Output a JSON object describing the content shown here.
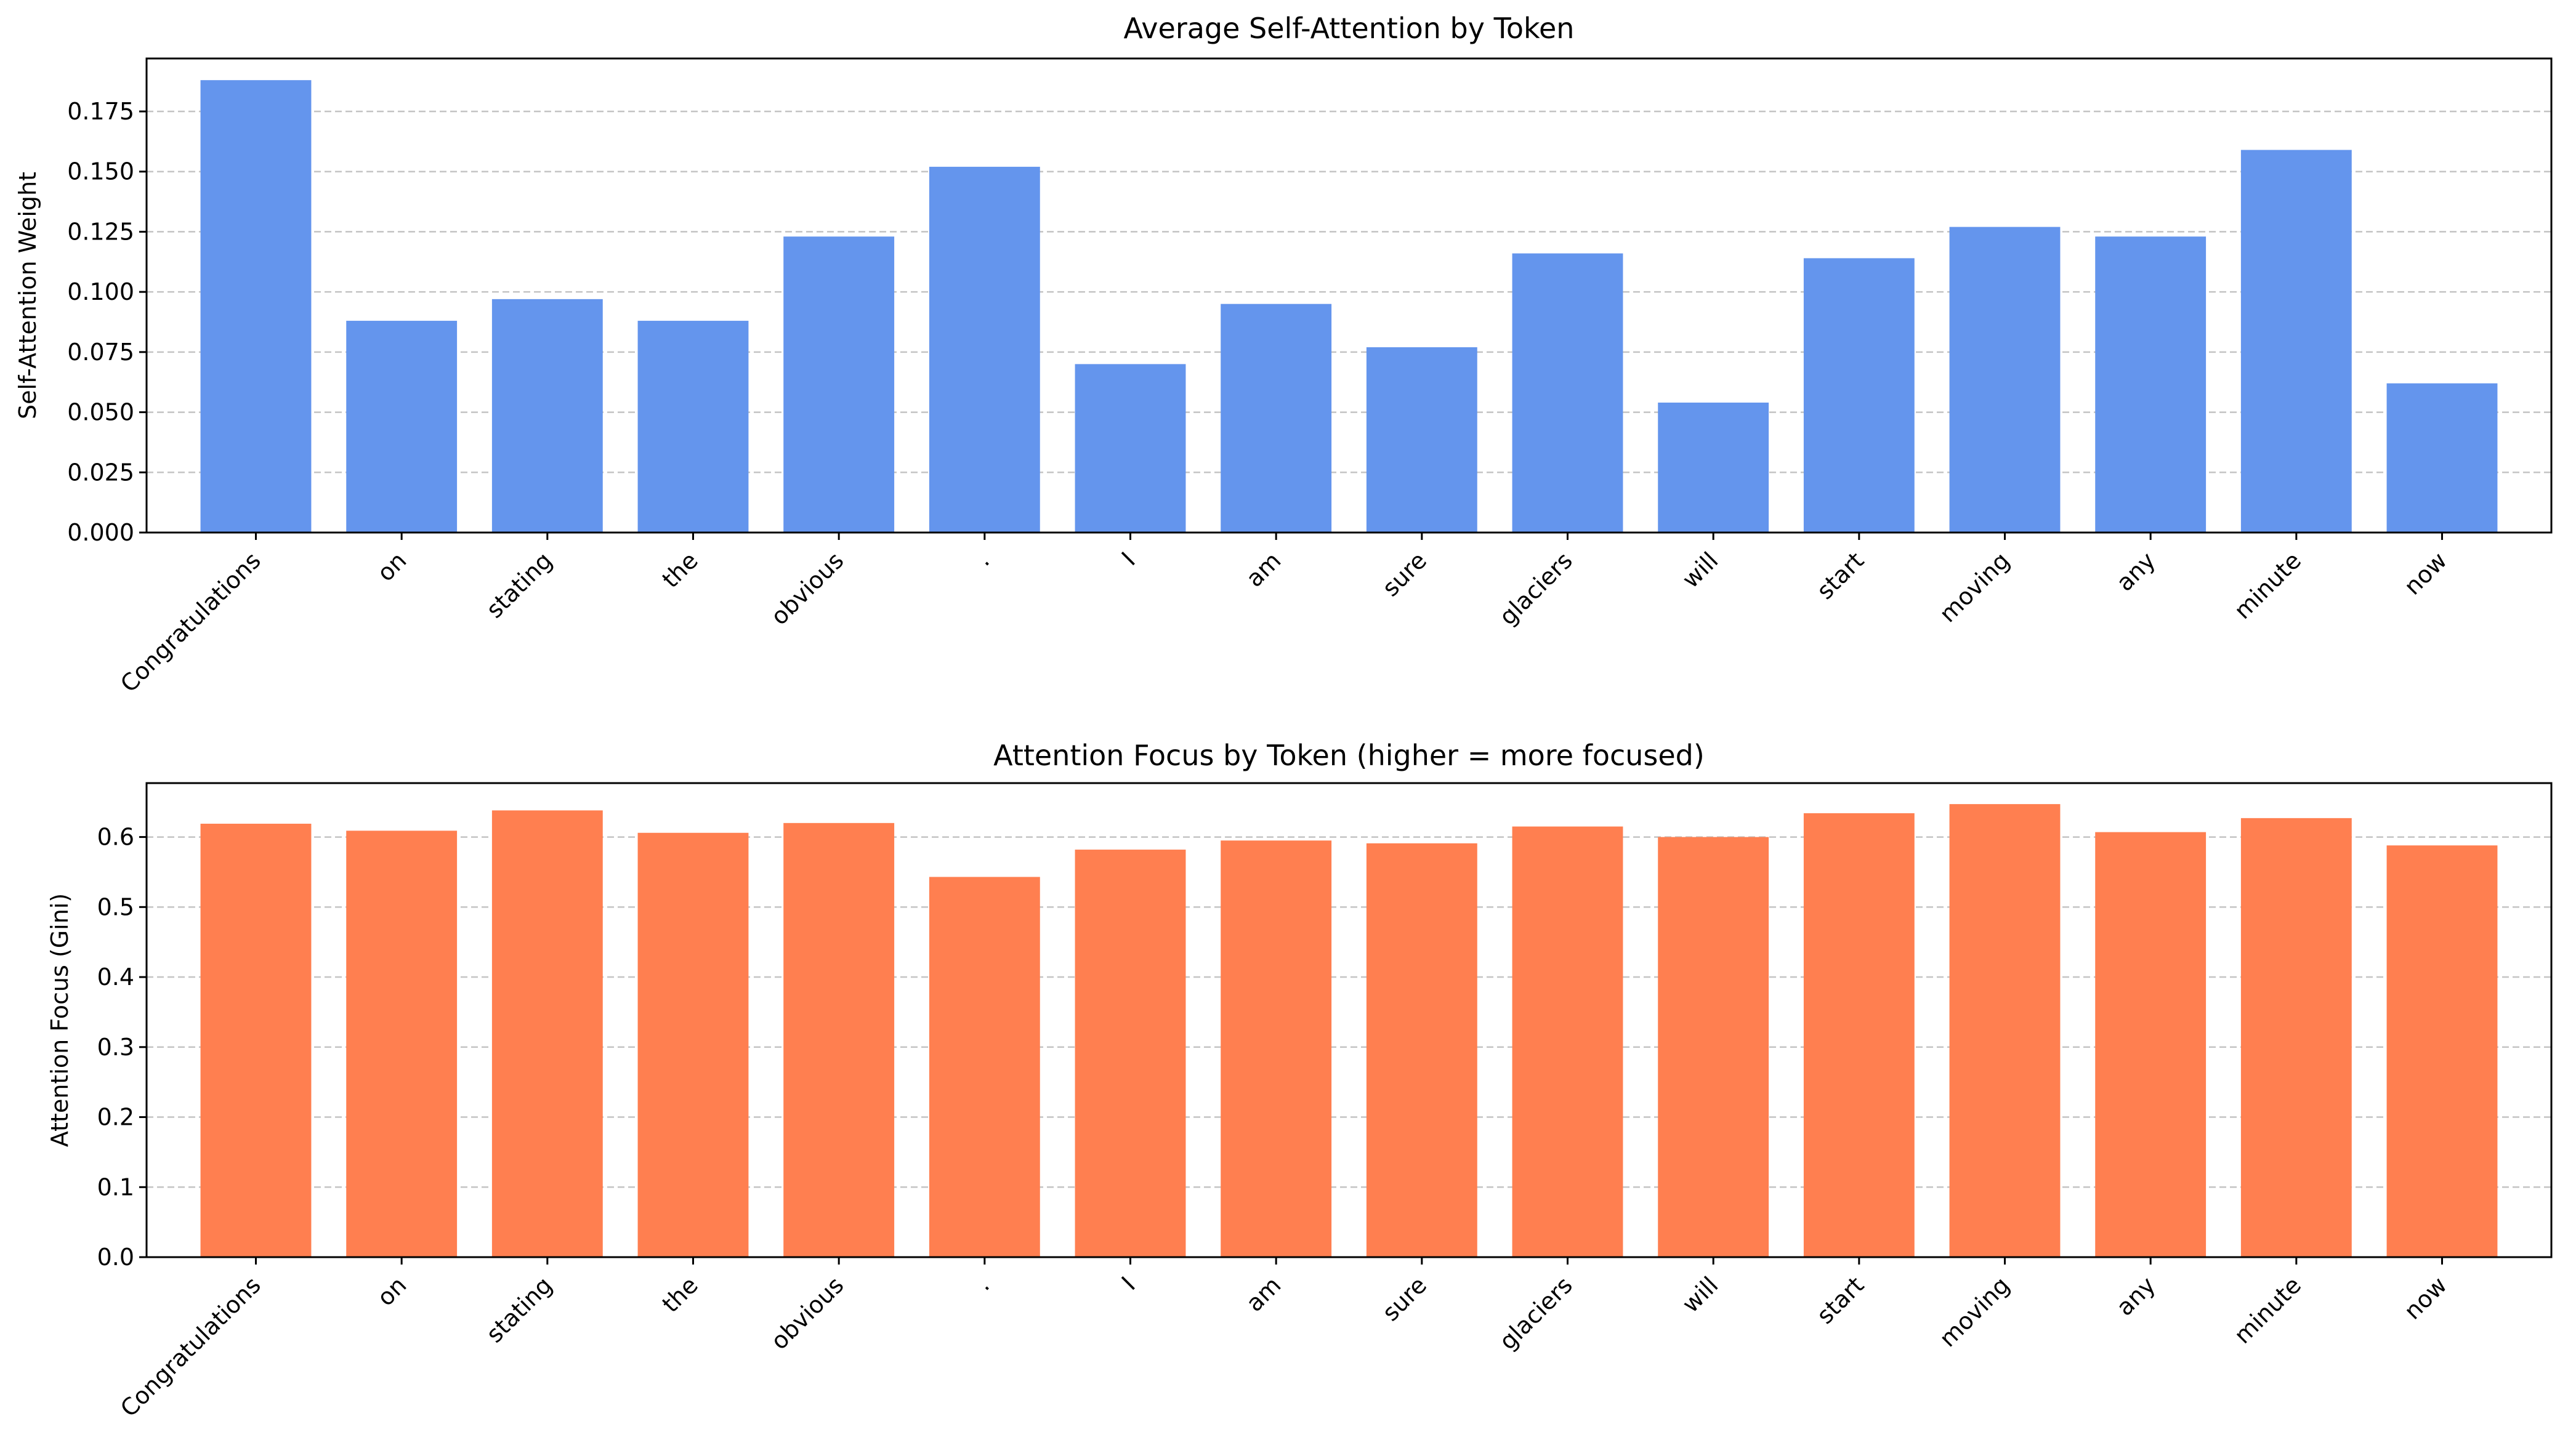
{
  "chart_data": [
    {
      "type": "bar",
      "title": "Average Self-Attention by Token",
      "xlabel": "",
      "ylabel": "Self-Attention Weight",
      "ylim": [
        0,
        0.197
      ],
      "yticks": [
        "0.000",
        "0.025",
        "0.050",
        "0.075",
        "0.100",
        "0.125",
        "0.150",
        "0.175"
      ],
      "grid": "y-dashed",
      "color": "#6495ed",
      "categories": [
        "Congratulations",
        "on",
        "stating",
        "the",
        "obvious",
        ".",
        "I",
        "am",
        "sure",
        "glaciers",
        "will",
        "start",
        "moving",
        "any",
        "minute",
        "now"
      ],
      "values": [
        0.188,
        0.088,
        0.097,
        0.088,
        0.123,
        0.152,
        0.07,
        0.095,
        0.077,
        0.116,
        0.054,
        0.114,
        0.127,
        0.123,
        0.159,
        0.062
      ]
    },
    {
      "type": "bar",
      "title": "Attention Focus by Token (higher = more focused)",
      "xlabel": "",
      "ylabel": "Attention Focus (Gini)",
      "ylim": [
        0,
        0.677
      ],
      "yticks": [
        "0.0",
        "0.1",
        "0.2",
        "0.3",
        "0.4",
        "0.5",
        "0.6"
      ],
      "grid": "y-dashed",
      "color": "#ff7f50",
      "categories": [
        "Congratulations",
        "on",
        "stating",
        "the",
        "obvious",
        ".",
        "I",
        "am",
        "sure",
        "glaciers",
        "will",
        "start",
        "moving",
        "any",
        "minute",
        "now"
      ],
      "values": [
        0.619,
        0.609,
        0.638,
        0.606,
        0.62,
        0.543,
        0.582,
        0.595,
        0.591,
        0.615,
        0.6,
        0.634,
        0.647,
        0.607,
        0.627,
        0.588
      ]
    }
  ]
}
